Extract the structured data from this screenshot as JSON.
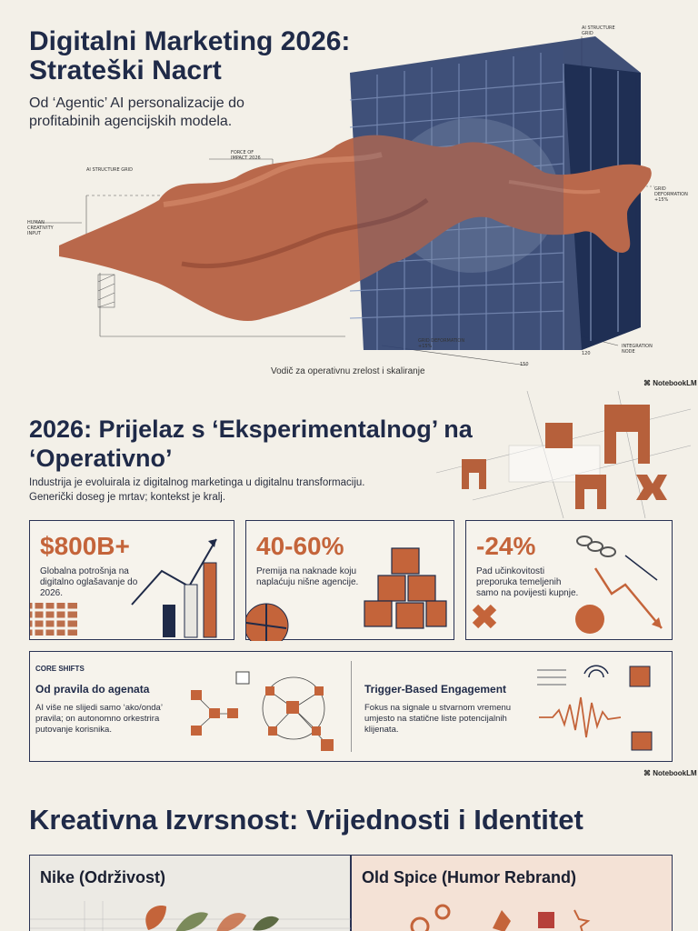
{
  "hero": {
    "title": "Digitalni Marketing 2026: Strateški Nacrt",
    "subtitle": "Od ‘Agentic’ AI personalizacije do profitabinih agencijskih modela.",
    "caption": "Vodič za operativnu zrelost i skaliranje",
    "annotations": {
      "ai_structure_grid_top": "AI STRUCTURE GRID",
      "ai_structure_grid_left": "AI STRUCTURE GRID",
      "force_of_impact": "FORCE OF IMPACT 2026",
      "human_creativity": "HUMAN CREATIVITY INPUT",
      "grid_deformation_right": "GRID DEFORMATION +15%",
      "grid_deformation_bottom": "GRID DEFORMATION +15%",
      "integration_node": "INTEGRATION NODE",
      "dim_150": "150",
      "dim_120": "120"
    }
  },
  "brand": {
    "notebooklm_1": "NotebookLM",
    "notebooklm_2": "NotebookLM"
  },
  "section2": {
    "title": "2026: Prijelaz s ‘Eksperimentalnog’ na ‘Operativno’",
    "subtitle": "Industrija je evoluirala iz digitalnog marketinga u digitalnu transformaciju. Generički doseg je mrtav; kontekst je kralj.",
    "stats": [
      {
        "value": "$800B+",
        "desc": "Globalna potrošnja na digitalno oglašavanje do 2026."
      },
      {
        "value": "40-60%",
        "desc": "Premija na naknade koju naplaćuju nišne agencije."
      },
      {
        "value": "-24%",
        "desc": "Pad učinkovitosti preporuka temeljenih samo na povijesti kupnje."
      }
    ],
    "core_shifts": {
      "tag": "CORE SHIFTS",
      "left_title": "Od pravila do agenata",
      "left_text": "AI više ne slijedi samo ‘ako/onda’ pravila; on autonomno orkestrira putovanje korisnika.",
      "right_title": "Trigger-Based Engagement",
      "right_text": "Fokus na signale u stvarnom vremenu umjesto na statične liste potencijalnih klijenata."
    }
  },
  "section3": {
    "title": "Kreativna Izvrsnost: Vrijednosti i Identitet",
    "panels": [
      {
        "title": "Nike (Održivost)"
      },
      {
        "title": "Old Spice (Humor Rebrand)"
      }
    ]
  },
  "colors": {
    "navy": "#1f2a48",
    "rust": "#c4643a",
    "background": "#f3f0e8"
  }
}
